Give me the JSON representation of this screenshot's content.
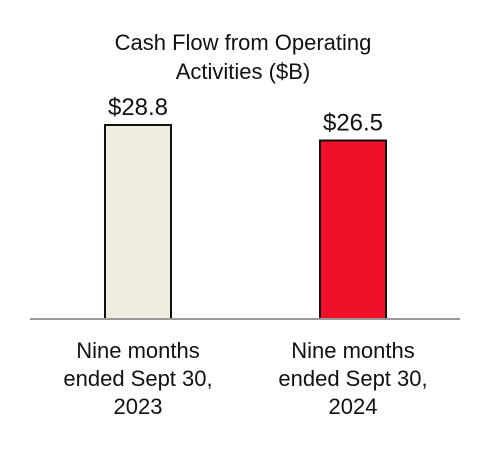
{
  "chart_data": {
    "type": "bar",
    "title_lines": [
      "Cash Flow from Operating",
      "Activities ($B)"
    ],
    "categories": [
      [
        "Nine months",
        "ended Sept 30,",
        "2023"
      ],
      [
        "Nine months",
        "ended Sept 30,",
        "2024"
      ]
    ],
    "values": [
      28.8,
      26.5
    ],
    "data_labels": [
      "$28.8",
      "$26.5"
    ],
    "colors": [
      "#F1ECE0",
      "#F0102A"
    ],
    "ylim": [
      0,
      28.8
    ],
    "grid": false,
    "legend": "none"
  }
}
